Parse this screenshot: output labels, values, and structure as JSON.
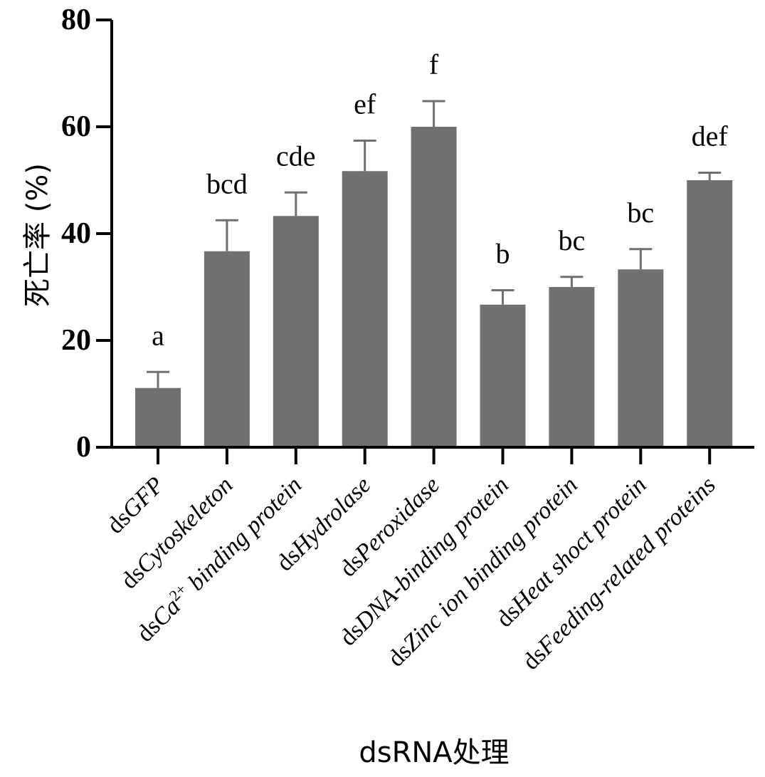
{
  "chart_data": {
    "type": "bar",
    "title": "",
    "xlabel": "dsRNA处理",
    "ylabel": "死亡率 (%)",
    "ylim": [
      0,
      80
    ],
    "yticks": [
      "0",
      "20",
      "40",
      "60",
      "80"
    ],
    "grid": false,
    "bar_color": "#707070",
    "categories": [
      {
        "prefix": "ds",
        "italic": "GFP",
        "sup": "",
        "rest": ""
      },
      {
        "prefix": "ds",
        "italic": "Cytoskeleton",
        "sup": "",
        "rest": ""
      },
      {
        "prefix": "ds",
        "italic": "Ca",
        "sup": "2+",
        "rest": " binding protein"
      },
      {
        "prefix": "ds",
        "italic": "Hydrolase",
        "sup": "",
        "rest": ""
      },
      {
        "prefix": "ds",
        "italic": "Peroxidase",
        "sup": "",
        "rest": ""
      },
      {
        "prefix": "ds",
        "italic": "DNA-binding protein",
        "sup": "",
        "rest": ""
      },
      {
        "prefix": "ds",
        "italic": "Zinc ion binding protein",
        "sup": "",
        "rest": ""
      },
      {
        "prefix": "ds",
        "italic": "Heat shoct protein",
        "sup": "",
        "rest": ""
      },
      {
        "prefix": "ds",
        "italic": "Feeding-related proteins",
        "sup": "",
        "rest": ""
      }
    ],
    "values": [
      11.1,
      36.7,
      43.3,
      51.7,
      60.0,
      26.7,
      30.0,
      33.3,
      50.0
    ],
    "errors": [
      3.0,
      5.8,
      4.4,
      5.7,
      4.8,
      2.7,
      1.9,
      3.8,
      1.4
    ],
    "significance": [
      "a",
      "bcd",
      "cde",
      "ef",
      "f",
      "b",
      "bc",
      "bc",
      "def"
    ]
  }
}
